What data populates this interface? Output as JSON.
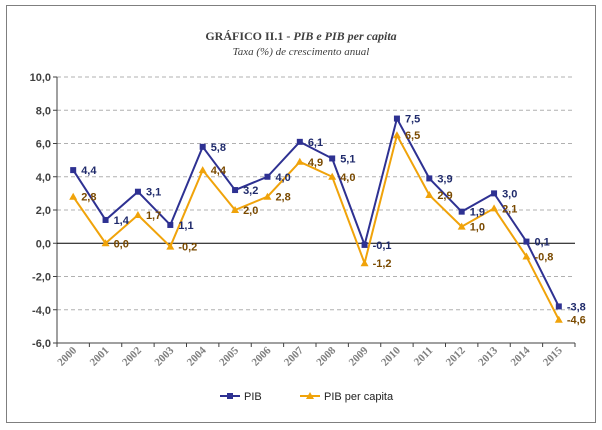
{
  "chart_data": {
    "type": "line",
    "title_main": "GRÁFICO II.1 - ",
    "title_italic": "PIB e PIB per capita",
    "subtitle": "Taxa (%) de crescimento anual",
    "x": [
      "2000",
      "2001",
      "2002",
      "2003",
      "2004",
      "2005",
      "2006",
      "2007",
      "2008",
      "2009",
      "2010",
      "2011",
      "2012",
      "2013",
      "2014",
      "2015"
    ],
    "ylim": [
      -6,
      10
    ],
    "yticks": [
      "-6,0",
      "-4,0",
      "-2,0",
      "0,0",
      "2,0",
      "4,0",
      "6,0",
      "8,0",
      "10,0"
    ],
    "ytick_values": [
      -6,
      -4,
      -2,
      0,
      2,
      4,
      6,
      8,
      10
    ],
    "grid": true,
    "legend_position": "bottom",
    "series": [
      {
        "name": "PIB",
        "color": "#2e3192",
        "marker": "square",
        "values": [
          4.4,
          1.4,
          3.1,
          1.1,
          5.8,
          3.2,
          4.0,
          6.1,
          5.1,
          -0.1,
          7.5,
          3.9,
          1.9,
          3.0,
          0.1,
          -3.8
        ],
        "labels": [
          "4,4",
          "1,4",
          "3,1",
          "1,1",
          "5,8",
          "3,2",
          "4,0",
          "6,1",
          "5,1",
          "-0,1",
          "7,5",
          "3,9",
          "1,9",
          "3,0",
          "0,1",
          "-3,8"
        ]
      },
      {
        "name": "PIB per capita",
        "color": "#f0a30a",
        "marker": "triangle",
        "values": [
          2.8,
          0.0,
          1.7,
          -0.2,
          4.4,
          2.0,
          2.8,
          4.9,
          4.0,
          -1.2,
          6.5,
          2.9,
          1.0,
          2.1,
          -0.8,
          -4.6
        ],
        "labels": [
          "2,8",
          "0,0",
          "1,7",
          "-0,2",
          "4,4",
          "2,0",
          "2,8",
          "4,9",
          "4,0",
          "-1,2",
          "6,5",
          "2,9",
          "1,0",
          "2,1",
          "-0,8",
          "-4,6"
        ]
      }
    ]
  }
}
